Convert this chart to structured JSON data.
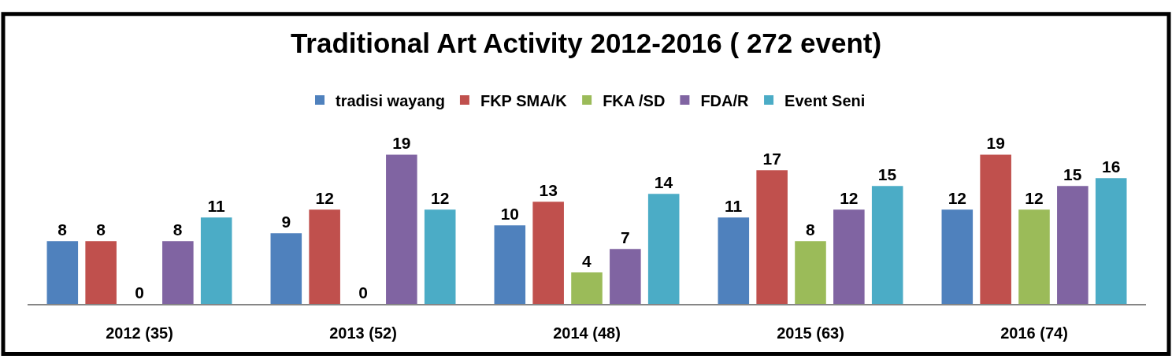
{
  "chart_data": {
    "type": "bar",
    "title": "Traditional Art Activity 2012-2016 ( 272 event)",
    "categories": [
      "2012 (35)",
      "2013 (52)",
      "2014 (48)",
      "2015 (63)",
      "2016 (74)"
    ],
    "series": [
      {
        "name": "tradisi wayang",
        "color": "#4f81bd",
        "values": [
          8,
          9,
          10,
          11,
          12
        ]
      },
      {
        "name": "FKP SMA/K",
        "color": "#c0504d",
        "values": [
          8,
          12,
          13,
          17,
          19
        ]
      },
      {
        "name": "FKA /SD",
        "color": "#9bbb59",
        "values": [
          0,
          0,
          4,
          8,
          12
        ]
      },
      {
        "name": "FDA/R",
        "color": "#8064a2",
        "values": [
          8,
          19,
          7,
          12,
          15
        ]
      },
      {
        "name": "Event Seni",
        "color": "#4bacc6",
        "values": [
          11,
          12,
          14,
          15,
          16
        ]
      }
    ],
    "data_labels": true,
    "legend": "top"
  }
}
